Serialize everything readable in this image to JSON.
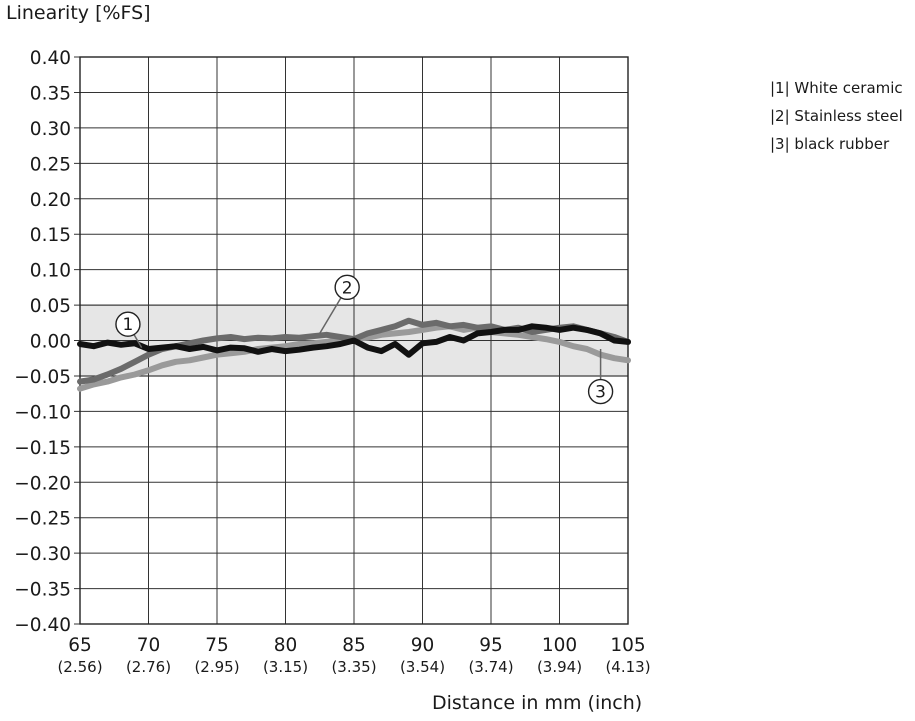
{
  "chart_data": {
    "type": "line",
    "ylabel": "Linearity [%FS]",
    "xlabel": "Distance in mm (inch)",
    "xlim": [
      65,
      105
    ],
    "ylim": [
      -0.4,
      0.4
    ],
    "grid": true,
    "tolerance_band": [
      -0.05,
      0.05
    ],
    "legend_position": "top-right",
    "x_ticks": [
      {
        "value": 65,
        "label": "65",
        "sub": "(2.56)"
      },
      {
        "value": 70,
        "label": "70",
        "sub": "(2.76)"
      },
      {
        "value": 75,
        "label": "75",
        "sub": "(2.95)"
      },
      {
        "value": 80,
        "label": "80",
        "sub": "(3.15)"
      },
      {
        "value": 85,
        "label": "85",
        "sub": "(3.35)"
      },
      {
        "value": 90,
        "label": "90",
        "sub": "(3.54)"
      },
      {
        "value": 95,
        "label": "95",
        "sub": "(3.74)"
      },
      {
        "value": 100,
        "label": "100",
        "sub": "(3.94)"
      },
      {
        "value": 105,
        "label": "105",
        "sub": "(4.13)"
      }
    ],
    "y_ticks": [
      {
        "value": 0.4,
        "label": "0.40"
      },
      {
        "value": 0.35,
        "label": "0.35"
      },
      {
        "value": 0.3,
        "label": "0.30"
      },
      {
        "value": 0.25,
        "label": "0.25"
      },
      {
        "value": 0.2,
        "label": "0.20"
      },
      {
        "value": 0.15,
        "label": "0.15"
      },
      {
        "value": 0.1,
        "label": "0.10"
      },
      {
        "value": 0.05,
        "label": "0.05"
      },
      {
        "value": 0.0,
        "label": "0.00"
      },
      {
        "value": -0.05,
        "label": "−0.05"
      },
      {
        "value": -0.1,
        "label": "−0.10"
      },
      {
        "value": -0.15,
        "label": "−0.15"
      },
      {
        "value": -0.2,
        "label": "−0.20"
      },
      {
        "value": -0.25,
        "label": "−0.25"
      },
      {
        "value": -0.3,
        "label": "−0.30"
      },
      {
        "value": -0.35,
        "label": "−0.35"
      },
      {
        "value": -0.4,
        "label": "−0.40"
      }
    ],
    "legend": [
      {
        "label": "|1| White ceramic"
      },
      {
        "label": "|2| Stainless steel"
      },
      {
        "label": "|3| black rubber"
      }
    ],
    "series": [
      {
        "id": "1",
        "marker": "①",
        "color": "#111111",
        "marker_at": [
          68.5,
          0.023
        ],
        "leader_to": [
          69.5,
          -0.01
        ],
        "x": [
          65,
          66,
          67,
          68,
          69,
          70,
          71,
          72,
          73,
          74,
          75,
          76,
          77,
          78,
          79,
          80,
          81,
          82,
          83,
          84,
          85,
          86,
          87,
          88,
          89,
          90,
          91,
          92,
          93,
          94,
          95,
          96,
          97,
          98,
          99,
          100,
          101,
          102,
          103,
          104,
          105
        ],
        "y": [
          -0.005,
          -0.008,
          -0.003,
          -0.006,
          -0.004,
          -0.012,
          -0.01,
          -0.008,
          -0.012,
          -0.009,
          -0.014,
          -0.01,
          -0.011,
          -0.016,
          -0.012,
          -0.015,
          -0.013,
          -0.01,
          -0.008,
          -0.005,
          0.0,
          -0.01,
          -0.015,
          -0.005,
          -0.02,
          -0.004,
          -0.002,
          0.005,
          0.0,
          0.01,
          0.012,
          0.015,
          0.015,
          0.02,
          0.018,
          0.015,
          0.018,
          0.015,
          0.01,
          0.0,
          -0.002
        ]
      },
      {
        "id": "2",
        "marker": "②",
        "color": "#6b6b6b",
        "marker_at": [
          84.5,
          0.075
        ],
        "leader_to": [
          82.5,
          0.01
        ],
        "x": [
          65,
          66,
          67,
          68,
          69,
          70,
          71,
          72,
          73,
          74,
          75,
          76,
          77,
          78,
          79,
          80,
          81,
          82,
          83,
          84,
          85,
          86,
          87,
          88,
          89,
          90,
          91,
          92,
          93,
          94,
          95,
          96,
          97,
          98,
          99,
          100,
          101,
          102,
          103,
          104,
          105
        ],
        "y": [
          -0.058,
          -0.055,
          -0.048,
          -0.04,
          -0.03,
          -0.02,
          -0.012,
          -0.008,
          -0.004,
          0.0,
          0.003,
          0.005,
          0.002,
          0.004,
          0.003,
          0.005,
          0.004,
          0.006,
          0.008,
          0.005,
          0.002,
          0.01,
          0.015,
          0.02,
          0.028,
          0.022,
          0.025,
          0.02,
          0.022,
          0.018,
          0.02,
          0.015,
          0.018,
          0.012,
          0.015,
          0.018,
          0.02,
          0.015,
          0.01,
          0.005,
          -0.002
        ]
      },
      {
        "id": "3",
        "marker": "③",
        "color": "#9a9a9a",
        "marker_at": [
          103,
          -0.072
        ],
        "leader_to": [
          103,
          -0.012
        ],
        "x": [
          65,
          66,
          67,
          68,
          69,
          70,
          71,
          72,
          73,
          74,
          75,
          76,
          77,
          78,
          79,
          80,
          81,
          82,
          83,
          84,
          85,
          86,
          87,
          88,
          89,
          90,
          91,
          92,
          93,
          94,
          95,
          96,
          97,
          98,
          99,
          100,
          101,
          102,
          103,
          104,
          105
        ],
        "y": [
          -0.068,
          -0.062,
          -0.058,
          -0.052,
          -0.048,
          -0.042,
          -0.035,
          -0.03,
          -0.028,
          -0.024,
          -0.02,
          -0.018,
          -0.016,
          -0.012,
          -0.01,
          -0.008,
          -0.005,
          -0.004,
          -0.002,
          0.0,
          0.002,
          0.004,
          0.008,
          0.01,
          0.012,
          0.015,
          0.018,
          0.02,
          0.015,
          0.018,
          0.012,
          0.01,
          0.008,
          0.005,
          0.002,
          -0.002,
          -0.008,
          -0.012,
          -0.02,
          -0.025,
          -0.028
        ]
      }
    ]
  }
}
